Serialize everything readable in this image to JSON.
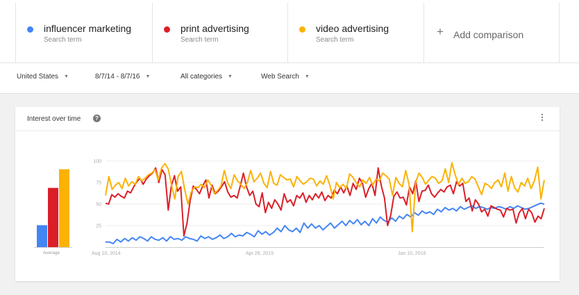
{
  "terms": [
    {
      "name": "influencer marketing",
      "sub": "Search term",
      "color": "#4285f4"
    },
    {
      "name": "print advertising",
      "sub": "Search term",
      "color": "#db1f28"
    },
    {
      "name": "video advertising",
      "sub": "Search term",
      "color": "#fbb203"
    }
  ],
  "add_comparison": {
    "label": "Add comparison",
    "icon": "plus-icon"
  },
  "filters": {
    "region": "United States",
    "date_range": "8/7/14 - 8/7/16",
    "category": "All categories",
    "search_type": "Web Search"
  },
  "card": {
    "title": "Interest over time",
    "help_icon": "?",
    "menu_icon": "more-vert-icon"
  },
  "chart_data": [
    {
      "type": "bar",
      "categories": [
        "Average"
      ],
      "series": [
        {
          "name": "influencer marketing",
          "values": [
            20
          ],
          "color": "#4285f4"
        },
        {
          "name": "print advertising",
          "values": [
            54
          ],
          "color": "#db1f28"
        },
        {
          "name": "video advertising",
          "values": [
            71
          ],
          "color": "#fbb203"
        }
      ],
      "xlabel": "Average",
      "ylim": [
        0,
        100
      ]
    },
    {
      "type": "line",
      "yticks": [
        25,
        50,
        75,
        100
      ],
      "ylim": [
        0,
        100
      ],
      "grid": true,
      "xticks": [
        "Aug 10, 2014",
        "Apr 26, 2015",
        "Jan 10, 2016"
      ],
      "series": [
        {
          "name": "influencer marketing",
          "color": "#4285f4",
          "values": [
            6,
            6,
            4,
            9,
            6,
            10,
            7,
            11,
            8,
            12,
            10,
            7,
            12,
            9,
            8,
            11,
            7,
            12,
            9,
            10,
            8,
            12,
            10,
            9,
            7,
            13,
            10,
            12,
            9,
            11,
            14,
            10,
            12,
            16,
            12,
            14,
            13,
            17,
            15,
            12,
            19,
            15,
            18,
            14,
            17,
            22,
            18,
            25,
            20,
            18,
            22,
            17,
            28,
            22,
            27,
            22,
            25,
            20,
            24,
            28,
            22,
            26,
            30,
            25,
            31,
            27,
            32,
            26,
            30,
            25,
            33,
            28,
            35,
            31,
            29,
            34,
            30,
            36,
            33,
            38,
            35,
            40,
            37,
            42,
            39,
            41,
            38,
            44,
            41,
            46,
            43,
            45,
            42,
            47,
            44,
            46,
            48,
            45,
            47,
            46,
            44,
            46,
            45,
            47,
            46,
            44,
            47,
            45,
            48,
            46,
            44,
            45,
            47,
            49,
            51,
            50
          ]
        },
        {
          "name": "print advertising",
          "color": "#db1f28",
          "values": [
            51,
            50,
            61,
            58,
            62,
            59,
            57,
            65,
            63,
            70,
            76,
            80,
            73,
            79,
            83,
            86,
            92,
            75,
            90,
            84,
            43,
            71,
            83,
            65,
            70,
            13,
            28,
            54,
            71,
            67,
            62,
            71,
            78,
            57,
            72,
            62,
            65,
            70,
            76,
            64,
            58,
            60,
            57,
            71,
            86,
            70,
            60,
            65,
            50,
            47,
            63,
            40,
            52,
            45,
            55,
            50,
            43,
            62,
            52,
            55,
            48,
            60,
            57,
            63,
            52,
            60,
            55,
            62,
            57,
            64,
            54,
            60,
            57,
            66,
            62,
            70,
            63,
            71,
            60,
            74,
            67,
            80,
            74,
            58,
            68,
            74,
            60,
            92,
            71,
            57,
            25,
            37,
            59,
            64,
            57,
            58,
            49,
            70,
            62,
            77,
            53,
            65,
            66,
            72,
            62,
            58,
            63,
            67,
            64,
            70,
            72,
            62,
            76,
            71,
            74,
            53,
            57,
            42,
            55,
            50,
            41,
            44,
            36,
            48,
            46,
            44,
            43,
            35,
            45,
            43,
            44,
            28,
            40,
            45,
            33,
            44,
            40,
            29,
            36,
            33,
            45
          ]
        },
        {
          "name": "video advertising",
          "color": "#fbb203",
          "values": [
            60,
            82,
            67,
            72,
            75,
            68,
            80,
            71,
            76,
            73,
            82,
            77,
            80,
            84,
            86,
            90,
            78,
            92,
            97,
            91,
            72,
            56,
            82,
            88,
            67,
            50,
            64,
            70,
            69,
            73,
            69,
            78,
            72,
            62,
            66,
            71,
            89,
            75,
            68,
            84,
            77,
            73,
            68,
            75,
            89,
            76,
            80,
            86,
            74,
            69,
            88,
            74,
            72,
            84,
            81,
            78,
            79,
            70,
            82,
            77,
            73,
            76,
            80,
            79,
            71,
            77,
            73,
            83,
            72,
            56,
            75,
            69,
            73,
            68,
            85,
            81,
            75,
            70,
            78,
            74,
            81,
            72,
            79,
            77,
            86,
            83,
            79,
            60,
            81,
            74,
            70,
            89,
            73,
            18,
            75,
            86,
            81,
            73,
            78,
            82,
            80,
            74,
            77,
            91,
            75,
            98,
            84,
            73,
            80,
            74,
            76,
            82,
            79,
            70,
            61,
            74,
            72,
            68,
            75,
            78,
            70,
            86,
            65,
            82,
            69,
            64,
            75,
            71,
            80,
            68,
            77,
            93,
            56,
            78
          ]
        }
      ]
    }
  ]
}
